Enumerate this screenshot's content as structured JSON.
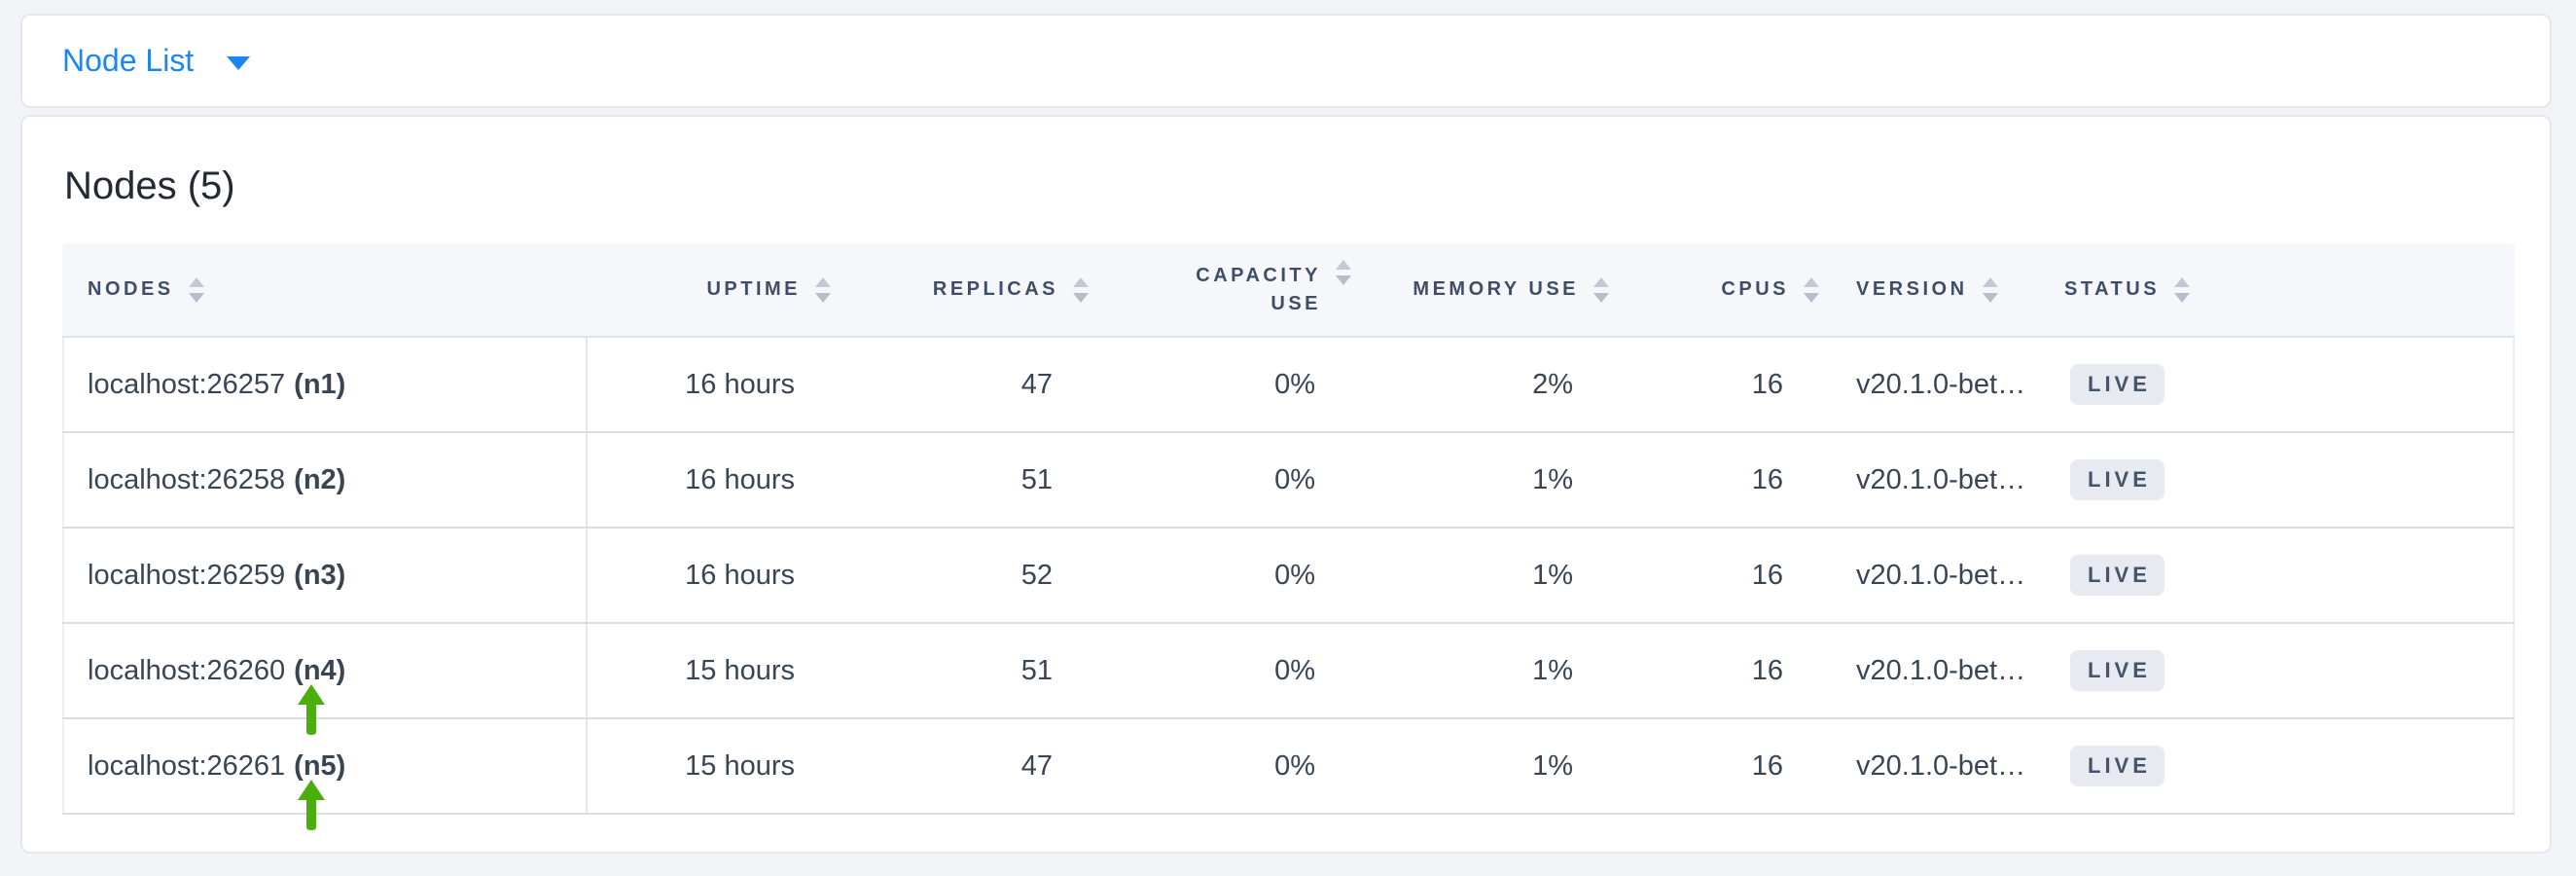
{
  "header": {
    "view_dropdown_label": "Node List"
  },
  "main": {
    "title": "Nodes (5)"
  },
  "table": {
    "columns": [
      {
        "key": "nodes",
        "label": "NODES",
        "align": "left"
      },
      {
        "key": "uptime",
        "label": "UPTIME",
        "align": "right"
      },
      {
        "key": "replicas",
        "label": "REPLICAS",
        "align": "right"
      },
      {
        "key": "capacity_use",
        "label": "CAPACITY USE",
        "align": "right",
        "wrap": true
      },
      {
        "key": "memory_use",
        "label": "MEMORY USE",
        "align": "right"
      },
      {
        "key": "cpus",
        "label": "CPUS",
        "align": "right"
      },
      {
        "key": "version",
        "label": "VERSION",
        "align": "left"
      },
      {
        "key": "status",
        "label": "STATUS",
        "align": "left"
      }
    ],
    "rows": [
      {
        "address": "localhost:26257",
        "node_id": "(n1)",
        "uptime": "16 hours",
        "replicas": "47",
        "capacity_use": "0%",
        "memory_use": "2%",
        "cpus": "16",
        "version": "v20.1.0-bet…",
        "status": "LIVE",
        "arrow": false
      },
      {
        "address": "localhost:26258",
        "node_id": "(n2)",
        "uptime": "16 hours",
        "replicas": "51",
        "capacity_use": "0%",
        "memory_use": "1%",
        "cpus": "16",
        "version": "v20.1.0-bet…",
        "status": "LIVE",
        "arrow": false
      },
      {
        "address": "localhost:26259",
        "node_id": "(n3)",
        "uptime": "16 hours",
        "replicas": "52",
        "capacity_use": "0%",
        "memory_use": "1%",
        "cpus": "16",
        "version": "v20.1.0-bet…",
        "status": "LIVE",
        "arrow": false
      },
      {
        "address": "localhost:26260",
        "node_id": "(n4)",
        "uptime": "15 hours",
        "replicas": "51",
        "capacity_use": "0%",
        "memory_use": "1%",
        "cpus": "16",
        "version": "v20.1.0-bet…",
        "status": "LIVE",
        "arrow": true
      },
      {
        "address": "localhost:26261",
        "node_id": "(n5)",
        "uptime": "15 hours",
        "replicas": "47",
        "capacity_use": "0%",
        "memory_use": "1%",
        "cpus": "16",
        "version": "v20.1.0-bet…",
        "status": "LIVE",
        "arrow": true
      }
    ]
  },
  "icons": {
    "dropdown_caret": "caret-down",
    "sort": "sort-carets",
    "row_annotation": "green-up-arrow"
  },
  "colors": {
    "accent_blue": "#1c86f2",
    "arrow_green": "#4cae0d",
    "badge_bg": "#e7eaf1",
    "badge_text": "#44546b",
    "header_text": "#3f4e66",
    "page_bg": "#f3f4f8"
  }
}
